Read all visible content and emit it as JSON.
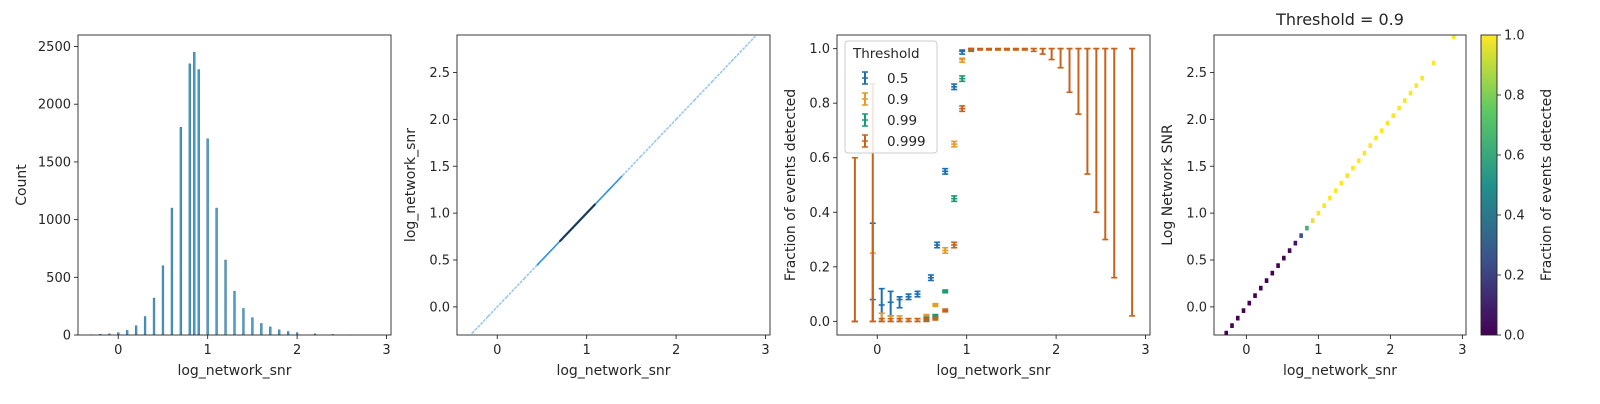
{
  "chart_data": [
    {
      "type": "histogram",
      "title": "",
      "xlabel": "log_network_snr",
      "ylabel": "Count",
      "xlim": [
        -0.45,
        3.05
      ],
      "ylim": [
        0,
        2600
      ],
      "xticks": [
        0,
        1,
        2,
        3
      ],
      "yticks": [
        0,
        500,
        1000,
        1500,
        2000,
        2500
      ],
      "color": "#4c9ec9",
      "edge_color": "#2b6f98",
      "bin_width": 0.02,
      "bins": [
        {
          "x": -0.3,
          "count": 3
        },
        {
          "x": -0.2,
          "count": 6
        },
        {
          "x": -0.1,
          "count": 10
        },
        {
          "x": 0.0,
          "count": 20
        },
        {
          "x": 0.1,
          "count": 40
        },
        {
          "x": 0.2,
          "count": 80
        },
        {
          "x": 0.3,
          "count": 160
        },
        {
          "x": 0.4,
          "count": 320
        },
        {
          "x": 0.5,
          "count": 600
        },
        {
          "x": 0.6,
          "count": 1100
        },
        {
          "x": 0.7,
          "count": 1800
        },
        {
          "x": 0.8,
          "count": 2350
        },
        {
          "x": 0.85,
          "count": 2450
        },
        {
          "x": 0.9,
          "count": 2300
        },
        {
          "x": 1.0,
          "count": 1700
        },
        {
          "x": 1.1,
          "count": 1100
        },
        {
          "x": 1.2,
          "count": 650
        },
        {
          "x": 1.3,
          "count": 380
        },
        {
          "x": 1.4,
          "count": 230
        },
        {
          "x": 1.5,
          "count": 150
        },
        {
          "x": 1.6,
          "count": 100
        },
        {
          "x": 1.7,
          "count": 70
        },
        {
          "x": 1.8,
          "count": 45
        },
        {
          "x": 1.9,
          "count": 30
        },
        {
          "x": 2.0,
          "count": 20
        },
        {
          "x": 2.2,
          "count": 10
        },
        {
          "x": 2.4,
          "count": 5
        },
        {
          "x": 2.6,
          "count": 2
        },
        {
          "x": 2.9,
          "count": 0
        }
      ]
    },
    {
      "type": "scatter",
      "title": "",
      "xlabel": "log_network_snr",
      "ylabel": "log_network_snr",
      "xlim": [
        -0.45,
        3.05
      ],
      "ylim": [
        -0.3,
        2.9
      ],
      "xticks": [
        0,
        1,
        2,
        3
      ],
      "yticks": [
        0.0,
        0.5,
        1.0,
        1.5,
        2.0,
        2.5
      ],
      "light_color": "#9cc7ef",
      "mid_color": "#2c8fe6",
      "dark_color": "#163a5c",
      "points": [
        {
          "x": -0.28,
          "y": -0.28,
          "shade": "light"
        },
        {
          "x": -0.1,
          "y": -0.1,
          "shade": "light"
        },
        {
          "x": 0.1,
          "y": 0.1,
          "shade": "light"
        },
        {
          "x": 0.3,
          "y": 0.3,
          "shade": "light"
        },
        {
          "x": 0.45,
          "y": 0.45,
          "shade": "mid"
        },
        {
          "x": 0.6,
          "y": 0.6,
          "shade": "mid"
        },
        {
          "x": 0.7,
          "y": 0.7,
          "shade": "dark"
        },
        {
          "x": 0.8,
          "y": 0.8,
          "shade": "dark"
        },
        {
          "x": 0.9,
          "y": 0.9,
          "shade": "dark"
        },
        {
          "x": 1.0,
          "y": 1.0,
          "shade": "dark"
        },
        {
          "x": 1.1,
          "y": 1.1,
          "shade": "mid"
        },
        {
          "x": 1.25,
          "y": 1.25,
          "shade": "mid"
        },
        {
          "x": 1.4,
          "y": 1.4,
          "shade": "light"
        },
        {
          "x": 1.6,
          "y": 1.6,
          "shade": "light"
        },
        {
          "x": 1.8,
          "y": 1.8,
          "shade": "light"
        },
        {
          "x": 2.0,
          "y": 2.0,
          "shade": "light"
        },
        {
          "x": 2.2,
          "y": 2.2,
          "shade": "light"
        },
        {
          "x": 2.4,
          "y": 2.4,
          "shade": "light"
        },
        {
          "x": 2.62,
          "y": 2.62,
          "shade": "light"
        },
        {
          "x": 2.88,
          "y": 2.88,
          "shade": "light"
        }
      ]
    },
    {
      "type": "errorbar",
      "title": "",
      "xlabel": "log_network_snr",
      "ylabel": "Fraction of events detected",
      "xlim": [
        -0.45,
        3.05
      ],
      "ylim": [
        -0.05,
        1.05
      ],
      "xticks": [
        0,
        1,
        2,
        3
      ],
      "yticks": [
        0.0,
        0.2,
        0.4,
        0.6,
        0.8,
        1.0
      ],
      "legend": {
        "title": "Threshold",
        "position": "upper-left"
      },
      "series": [
        {
          "name": "0.5",
          "color": "#1f6fae",
          "points": [
            {
              "x": -0.25,
              "y": 0.0,
              "lo": 0.0,
              "hi": 0.0
            },
            {
              "x": -0.05,
              "y": 0.08,
              "lo": 0.0,
              "hi": 0.36
            },
            {
              "x": 0.05,
              "y": 0.06,
              "lo": 0.0,
              "hi": 0.12
            },
            {
              "x": 0.15,
              "y": 0.07,
              "lo": 0.02,
              "hi": 0.11
            },
            {
              "x": 0.25,
              "y": 0.08,
              "lo": 0.05,
              "hi": 0.09
            },
            {
              "x": 0.35,
              "y": 0.09,
              "lo": 0.08,
              "hi": 0.1
            },
            {
              "x": 0.45,
              "y": 0.1,
              "lo": 0.09,
              "hi": 0.11
            },
            {
              "x": 0.6,
              "y": 0.16,
              "lo": 0.15,
              "hi": 0.17
            },
            {
              "x": 0.67,
              "y": 0.28,
              "lo": 0.27,
              "hi": 0.29
            },
            {
              "x": 0.76,
              "y": 0.55,
              "lo": 0.54,
              "hi": 0.56
            },
            {
              "x": 0.86,
              "y": 0.86,
              "lo": 0.85,
              "hi": 0.87
            },
            {
              "x": 0.95,
              "y": 0.99,
              "lo": 0.98,
              "hi": 0.995
            }
          ]
        },
        {
          "name": "0.9",
          "color": "#e69a2a",
          "points": [
            {
              "x": -0.25,
              "y": 0.0,
              "lo": 0.0,
              "hi": 0.0
            },
            {
              "x": -0.05,
              "y": 0.0,
              "lo": 0.0,
              "hi": 0.25
            },
            {
              "x": 0.05,
              "y": 0.0,
              "lo": 0.0,
              "hi": 0.03
            },
            {
              "x": 0.15,
              "y": 0.0,
              "lo": 0.0,
              "hi": 0.02
            },
            {
              "x": 0.25,
              "y": 0.01,
              "lo": 0.0,
              "hi": 0.02
            },
            {
              "x": 0.35,
              "y": 0.0,
              "lo": 0.0,
              "hi": 0.01
            },
            {
              "x": 0.45,
              "y": 0.0,
              "lo": 0.0,
              "hi": 0.01
            },
            {
              "x": 0.55,
              "y": 0.02,
              "lo": 0.015,
              "hi": 0.025
            },
            {
              "x": 0.65,
              "y": 0.06,
              "lo": 0.055,
              "hi": 0.065
            },
            {
              "x": 0.76,
              "y": 0.26,
              "lo": 0.25,
              "hi": 0.27
            },
            {
              "x": 0.86,
              "y": 0.65,
              "lo": 0.64,
              "hi": 0.66
            },
            {
              "x": 0.95,
              "y": 0.96,
              "lo": 0.95,
              "hi": 0.965
            }
          ]
        },
        {
          "name": "0.99",
          "color": "#1a9a73",
          "points": [
            {
              "x": 0.55,
              "y": 0.01,
              "lo": 0.005,
              "hi": 0.015
            },
            {
              "x": 0.65,
              "y": 0.02,
              "lo": 0.015,
              "hi": 0.025
            },
            {
              "x": 0.76,
              "y": 0.11,
              "lo": 0.105,
              "hi": 0.115
            },
            {
              "x": 0.86,
              "y": 0.45,
              "lo": 0.44,
              "hi": 0.46
            },
            {
              "x": 0.95,
              "y": 0.89,
              "lo": 0.88,
              "hi": 0.9
            },
            {
              "x": 1.05,
              "y": 1.0,
              "lo": 0.995,
              "hi": 1.0
            }
          ]
        },
        {
          "name": "0.999",
          "color": "#c8621a",
          "points": [
            {
              "x": -0.25,
              "y": 0.0,
              "lo": 0.0,
              "hi": 0.6
            },
            {
              "x": -0.05,
              "y": 0.0,
              "lo": 0.0,
              "hi": 0.87
            },
            {
              "x": 0.05,
              "y": 0.0,
              "lo": 0.0,
              "hi": 0.01
            },
            {
              "x": 0.15,
              "y": 0.0,
              "lo": 0.0,
              "hi": 0.01
            },
            {
              "x": 0.25,
              "y": 0.0,
              "lo": 0.0,
              "hi": 0.01
            },
            {
              "x": 0.35,
              "y": 0.0,
              "lo": 0.0,
              "hi": 0.01
            },
            {
              "x": 0.45,
              "y": 0.0,
              "lo": 0.0,
              "hi": 0.01
            },
            {
              "x": 0.55,
              "y": 0.0,
              "lo": 0.0,
              "hi": 0.01
            },
            {
              "x": 0.65,
              "y": 0.01,
              "lo": 0.005,
              "hi": 0.015
            },
            {
              "x": 0.76,
              "y": 0.04,
              "lo": 0.035,
              "hi": 0.045
            },
            {
              "x": 0.86,
              "y": 0.28,
              "lo": 0.27,
              "hi": 0.29
            },
            {
              "x": 0.95,
              "y": 0.78,
              "lo": 0.77,
              "hi": 0.79
            },
            {
              "x": 1.05,
              "y": 1.0,
              "lo": 0.99,
              "hi": 1.0
            },
            {
              "x": 1.15,
              "y": 1.0,
              "lo": 0.995,
              "hi": 1.0
            },
            {
              "x": 1.25,
              "y": 1.0,
              "lo": 0.995,
              "hi": 1.0
            },
            {
              "x": 1.35,
              "y": 1.0,
              "lo": 0.995,
              "hi": 1.0
            },
            {
              "x": 1.45,
              "y": 1.0,
              "lo": 0.995,
              "hi": 1.0
            },
            {
              "x": 1.55,
              "y": 1.0,
              "lo": 0.995,
              "hi": 1.0
            },
            {
              "x": 1.65,
              "y": 1.0,
              "lo": 0.995,
              "hi": 1.0
            },
            {
              "x": 1.75,
              "y": 1.0,
              "lo": 0.99,
              "hi": 1.0
            },
            {
              "x": 1.85,
              "y": 1.0,
              "lo": 0.98,
              "hi": 1.0
            },
            {
              "x": 1.95,
              "y": 1.0,
              "lo": 0.96,
              "hi": 1.0
            },
            {
              "x": 2.05,
              "y": 1.0,
              "lo": 0.93,
              "hi": 1.0
            },
            {
              "x": 2.15,
              "y": 1.0,
              "lo": 0.84,
              "hi": 1.0
            },
            {
              "x": 2.25,
              "y": 1.0,
              "lo": 0.76,
              "hi": 1.0
            },
            {
              "x": 2.35,
              "y": 1.0,
              "lo": 0.54,
              "hi": 1.0
            },
            {
              "x": 2.45,
              "y": 1.0,
              "lo": 0.4,
              "hi": 1.0
            },
            {
              "x": 2.55,
              "y": 1.0,
              "lo": 0.3,
              "hi": 1.0
            },
            {
              "x": 2.65,
              "y": 1.0,
              "lo": 0.16,
              "hi": 1.0
            },
            {
              "x": 2.85,
              "y": 1.0,
              "lo": 0.02,
              "hi": 1.0
            }
          ]
        }
      ]
    },
    {
      "type": "heatmap",
      "title": "Threshold = 0.9",
      "xlabel": "log_network_snr",
      "ylabel": "Log Network SNR",
      "xlim": [
        -0.45,
        3.05
      ],
      "ylim": [
        -0.3,
        2.9
      ],
      "xticks": [
        0,
        1,
        2,
        3
      ],
      "yticks": [
        0.0,
        0.5,
        1.0,
        1.5,
        2.0,
        2.5
      ],
      "colorbar": {
        "label": "Fraction of events detected",
        "range": [
          0,
          1
        ],
        "ticks": [
          0.0,
          0.2,
          0.4,
          0.6,
          0.8,
          1.0
        ],
        "colormap": [
          "#440154",
          "#3b528b",
          "#21918c",
          "#5ec962",
          "#fde725"
        ]
      },
      "cell_size": 0.05,
      "cells": [
        {
          "x": -0.28,
          "y": -0.28,
          "value": 0.0
        },
        {
          "x": -0.2,
          "y": -0.2,
          "value": 0.0
        },
        {
          "x": -0.12,
          "y": -0.12,
          "value": 0.0
        },
        {
          "x": -0.04,
          "y": -0.04,
          "value": 0.0
        },
        {
          "x": 0.04,
          "y": 0.04,
          "value": 0.0
        },
        {
          "x": 0.12,
          "y": 0.12,
          "value": 0.0
        },
        {
          "x": 0.2,
          "y": 0.2,
          "value": 0.01
        },
        {
          "x": 0.28,
          "y": 0.28,
          "value": 0.0
        },
        {
          "x": 0.36,
          "y": 0.36,
          "value": 0.0
        },
        {
          "x": 0.44,
          "y": 0.44,
          "value": 0.0
        },
        {
          "x": 0.52,
          "y": 0.52,
          "value": 0.01
        },
        {
          "x": 0.6,
          "y": 0.6,
          "value": 0.02
        },
        {
          "x": 0.68,
          "y": 0.68,
          "value": 0.06
        },
        {
          "x": 0.76,
          "y": 0.76,
          "value": 0.26
        },
        {
          "x": 0.84,
          "y": 0.84,
          "value": 0.65
        },
        {
          "x": 0.92,
          "y": 0.92,
          "value": 0.96
        },
        {
          "x": 1.0,
          "y": 1.0,
          "value": 1.0
        },
        {
          "x": 1.08,
          "y": 1.08,
          "value": 1.0
        },
        {
          "x": 1.16,
          "y": 1.16,
          "value": 1.0
        },
        {
          "x": 1.24,
          "y": 1.24,
          "value": 1.0
        },
        {
          "x": 1.32,
          "y": 1.32,
          "value": 1.0
        },
        {
          "x": 1.4,
          "y": 1.4,
          "value": 1.0
        },
        {
          "x": 1.48,
          "y": 1.48,
          "value": 1.0
        },
        {
          "x": 1.56,
          "y": 1.56,
          "value": 1.0
        },
        {
          "x": 1.64,
          "y": 1.64,
          "value": 1.0
        },
        {
          "x": 1.72,
          "y": 1.72,
          "value": 1.0
        },
        {
          "x": 1.8,
          "y": 1.8,
          "value": 1.0
        },
        {
          "x": 1.88,
          "y": 1.88,
          "value": 1.0
        },
        {
          "x": 1.96,
          "y": 1.96,
          "value": 1.0
        },
        {
          "x": 2.04,
          "y": 2.04,
          "value": 1.0
        },
        {
          "x": 2.12,
          "y": 2.12,
          "value": 1.0
        },
        {
          "x": 2.2,
          "y": 2.2,
          "value": 1.0
        },
        {
          "x": 2.28,
          "y": 2.28,
          "value": 1.0
        },
        {
          "x": 2.36,
          "y": 2.36,
          "value": 1.0
        },
        {
          "x": 2.44,
          "y": 2.44,
          "value": 1.0
        },
        {
          "x": 2.6,
          "y": 2.6,
          "value": 1.0
        },
        {
          "x": 2.88,
          "y": 2.88,
          "value": 1.0
        }
      ]
    }
  ]
}
